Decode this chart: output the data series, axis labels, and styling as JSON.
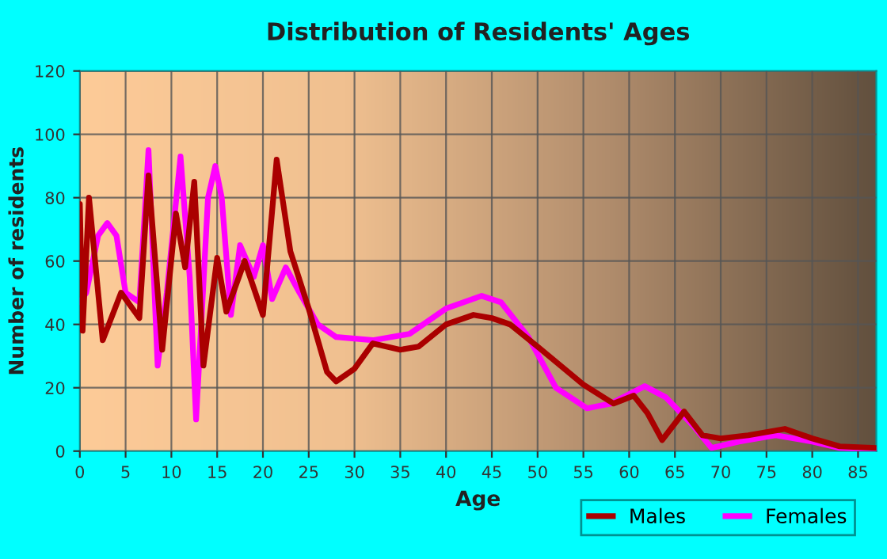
{
  "chart_data": {
    "type": "line",
    "title": "Distribution of Residents' Ages",
    "xlabel": "Age",
    "ylabel": "Number of residents",
    "xlim": [
      0,
      87
    ],
    "ylim": [
      0,
      120
    ],
    "xticks": [
      0,
      5,
      10,
      15,
      20,
      25,
      30,
      35,
      40,
      45,
      50,
      55,
      60,
      65,
      70,
      75,
      80,
      85
    ],
    "yticks": [
      0,
      20,
      40,
      60,
      80,
      100,
      120
    ],
    "grid": true,
    "legend": "bottom right",
    "line_style": "solid",
    "marker": "none",
    "series": [
      {
        "name": "Males",
        "color": "#aa0000",
        "x": [
          0,
          0.3,
          1,
          2.5,
          4.5,
          6.5,
          7.5,
          9,
          10.5,
          11.5,
          12.5,
          13.5,
          15,
          16,
          18,
          20,
          21.5,
          23,
          25,
          27,
          28,
          30,
          32,
          35,
          37,
          40,
          43,
          45,
          47,
          50,
          55,
          58.3,
          60.5,
          62,
          63.6,
          66,
          68,
          70,
          73,
          77,
          80,
          83,
          87
        ],
        "values": [
          78,
          38,
          80,
          35,
          50,
          42,
          87,
          32,
          75,
          58,
          85,
          27,
          61,
          44,
          60,
          43,
          92,
          63,
          45,
          25,
          22,
          26,
          34,
          32,
          33,
          40,
          43,
          42,
          40,
          33,
          21,
          15,
          17.5,
          12,
          3.5,
          12.5,
          5,
          4,
          5,
          7,
          4,
          1.5,
          1
        ]
      },
      {
        "name": "Females",
        "color": "#ff00ff",
        "x": [
          0,
          0.7,
          2,
          3,
          4,
          5,
          6.5,
          7.5,
          8.5,
          9.5,
          11,
          12,
          12.7,
          14,
          14.8,
          15.5,
          16.5,
          17.5,
          19,
          20,
          21,
          22.5,
          24,
          26,
          28,
          32,
          36,
          40,
          43.9,
          46,
          49,
          52,
          55.4,
          58,
          61.7,
          64,
          67,
          69,
          72,
          76,
          80,
          83,
          87
        ],
        "values": [
          47,
          50,
          68,
          72,
          68,
          50,
          47,
          95,
          27,
          50,
          93,
          55,
          10,
          80,
          90,
          80,
          43,
          65,
          55,
          65,
          48,
          58,
          50,
          40,
          36,
          35,
          37,
          45,
          49,
          47,
          36,
          20,
          13.5,
          15,
          20.5,
          17,
          8,
          1,
          3,
          5,
          3,
          1,
          0.5
        ]
      }
    ]
  }
}
